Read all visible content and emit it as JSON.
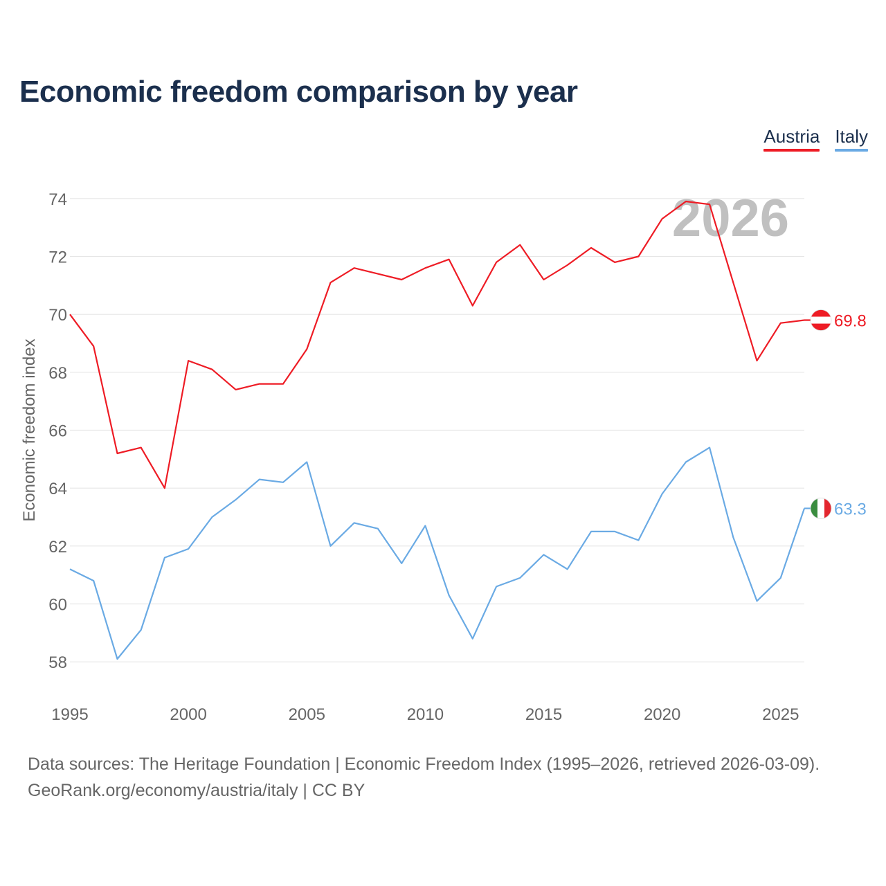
{
  "header": {
    "title": "Economic freedom comparison by year"
  },
  "colors": {
    "austria": "#ee1c25",
    "italy": "#6aaae4",
    "grid": "#e6e6e6",
    "tick": "#666666",
    "watermark": "#c0c0c0"
  },
  "chart_data": {
    "type": "line",
    "title": "Economic freedom comparison by year",
    "xlabel": "",
    "ylabel": "Economic freedom index",
    "xlim": [
      1995,
      2026
    ],
    "ylim": [
      57,
      75
    ],
    "x_ticks": [
      1995,
      2000,
      2005,
      2010,
      2015,
      2020,
      2025
    ],
    "y_ticks": [
      58,
      60,
      62,
      64,
      66,
      68,
      70,
      72,
      74
    ],
    "year_watermark": "2026",
    "legend_position": "top-right",
    "x": [
      1995,
      1996,
      1997,
      1998,
      1999,
      2000,
      2001,
      2002,
      2003,
      2004,
      2005,
      2006,
      2007,
      2008,
      2009,
      2010,
      2011,
      2012,
      2013,
      2014,
      2015,
      2016,
      2017,
      2018,
      2019,
      2020,
      2021,
      2022,
      2023,
      2024,
      2025,
      2026
    ],
    "series": [
      {
        "name": "Austria",
        "color": "#ee1c25",
        "end_label": "69.8",
        "flag": "austria-flag",
        "values": [
          70.0,
          68.9,
          65.2,
          65.4,
          64.0,
          68.4,
          68.1,
          67.4,
          67.6,
          67.6,
          68.8,
          71.1,
          71.6,
          71.4,
          71.2,
          71.6,
          71.9,
          70.3,
          71.8,
          72.4,
          71.2,
          71.7,
          72.3,
          71.8,
          72.0,
          73.3,
          73.9,
          73.8,
          71.1,
          68.4,
          69.7,
          69.8
        ]
      },
      {
        "name": "Italy",
        "color": "#6aaae4",
        "end_label": "63.3",
        "flag": "italy-flag",
        "values": [
          61.2,
          60.8,
          58.1,
          59.1,
          61.6,
          61.9,
          63.0,
          63.6,
          64.3,
          64.2,
          64.9,
          62.0,
          62.8,
          62.6,
          61.4,
          62.7,
          60.3,
          58.8,
          60.6,
          60.9,
          61.7,
          61.2,
          62.5,
          62.5,
          62.2,
          63.8,
          64.9,
          65.4,
          62.3,
          60.1,
          60.9,
          63.3
        ]
      }
    ]
  },
  "footer": {
    "line1": "Data sources: The Heritage Foundation | Economic Freedom Index (1995–2026, retrieved 2026-03-09).",
    "line2": "GeoRank.org/economy/austria/italy | CC BY"
  }
}
